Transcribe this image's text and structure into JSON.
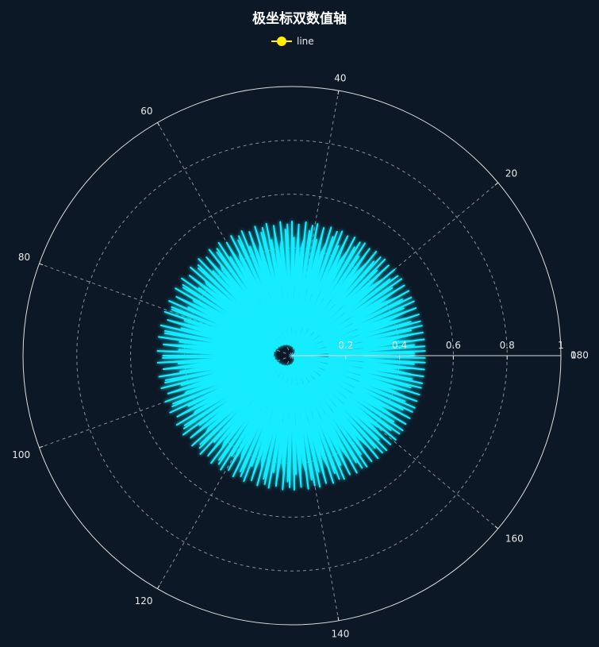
{
  "chart_data": {
    "type": "line",
    "coordinate_system": "polar",
    "title": "极坐标双数值轴",
    "legend": {
      "position": "top-center",
      "entries": [
        "line"
      ]
    },
    "angle_axis": {
      "type": "value",
      "min": 0,
      "max": 180,
      "start_angle_deg": 0,
      "ticks": [
        0,
        20,
        40,
        60,
        80,
        100,
        120,
        140,
        160,
        180
      ],
      "tick_labels": [
        "0",
        "20",
        "40",
        "60",
        "80",
        "100",
        "120",
        "140",
        "160",
        "180"
      ]
    },
    "radius_axis": {
      "type": "value",
      "min": 0,
      "max": 1,
      "ticks": [
        0.2,
        0.4,
        0.6,
        0.8,
        1
      ],
      "tick_labels": [
        "0.2",
        "0.4",
        "0.6",
        "0.8",
        "1"
      ],
      "split_line_style": "dashed"
    },
    "grid": true,
    "series": [
      {
        "name": "line",
        "formula": "r = |sin(2t)·cos(2t)|, angle = t in degrees, t = 0..360 step 0.5",
        "t_min": 0,
        "t_max": 360,
        "t_step": 0.5
      }
    ],
    "colors": {
      "background": "#0d1826",
      "line": "#12ecff",
      "legend_marker": "#ffee00",
      "axis": "#dddddd",
      "split_line": "#8a8f96"
    }
  }
}
